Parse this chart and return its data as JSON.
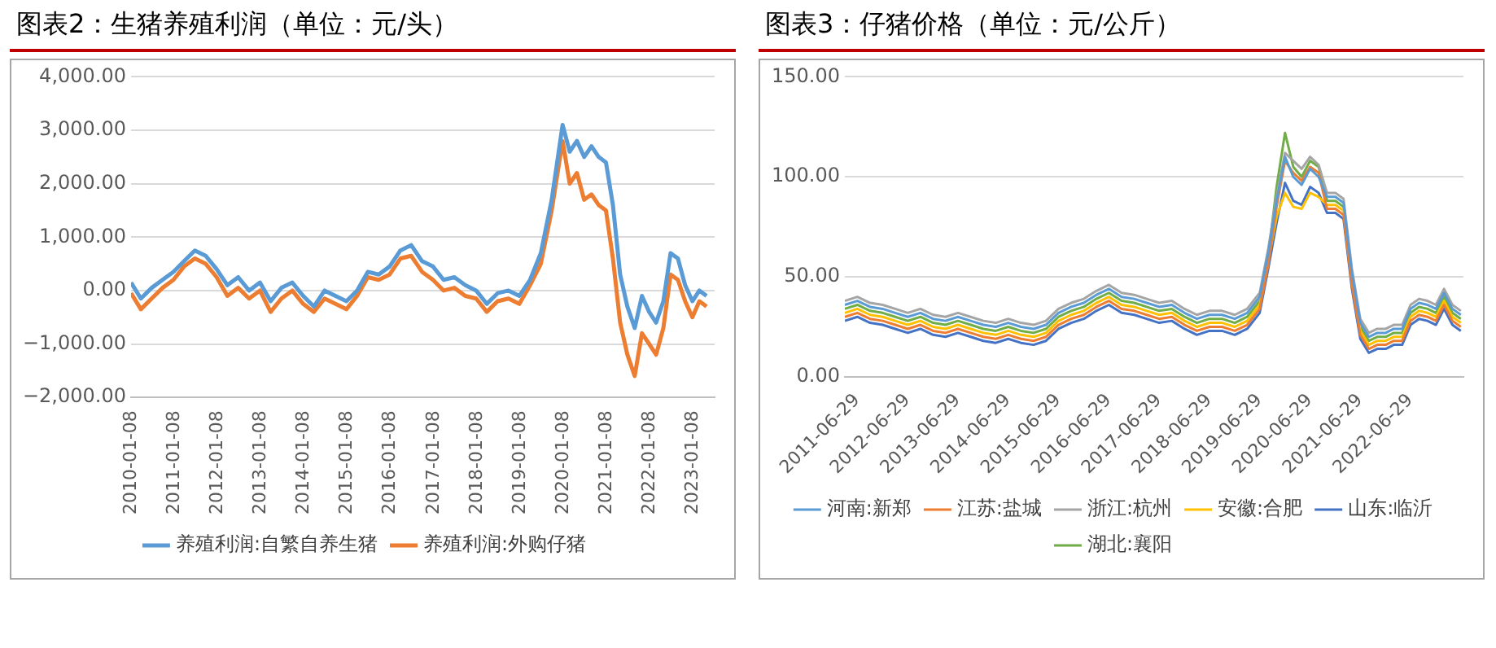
{
  "chart_data": [
    {
      "type": "line",
      "title": "图表2：生猪养殖利润（单位：元/头）",
      "legend": "bottom",
      "grid": "y",
      "x": [
        "2010-01-08",
        "2010-04-01",
        "2010-07-01",
        "2010-10-01",
        "2011-01-01",
        "2011-04-01",
        "2011-07-01",
        "2011-10-01",
        "2012-01-01",
        "2012-04-01",
        "2012-07-01",
        "2012-10-01",
        "2013-01-01",
        "2013-04-01",
        "2013-07-01",
        "2013-10-01",
        "2014-01-01",
        "2014-04-01",
        "2014-07-01",
        "2014-10-01",
        "2015-01-01",
        "2015-04-01",
        "2015-07-01",
        "2015-10-01",
        "2016-01-01",
        "2016-04-01",
        "2016-07-01",
        "2016-10-01",
        "2017-01-01",
        "2017-04-01",
        "2017-07-01",
        "2017-10-01",
        "2018-01-01",
        "2018-04-01",
        "2018-07-01",
        "2018-10-01",
        "2019-01-01",
        "2019-04-01",
        "2019-07-01",
        "2019-10-01",
        "2020-01-01",
        "2020-03-01",
        "2020-05-01",
        "2020-07-01",
        "2020-09-01",
        "2020-11-01",
        "2021-01-01",
        "2021-03-01",
        "2021-05-01",
        "2021-07-01",
        "2021-09-01",
        "2021-11-01",
        "2022-01-01",
        "2022-03-01",
        "2022-05-01",
        "2022-07-01",
        "2022-09-01",
        "2022-11-01",
        "2023-01-01",
        "2023-03-01",
        "2023-05-01"
      ],
      "series": [
        {
          "name": "养殖利润:自繁自养生猪",
          "color": "#5b9bd5",
          "values": [
            150,
            -150,
            50,
            200,
            350,
            550,
            750,
            650,
            400,
            100,
            250,
            0,
            150,
            -200,
            50,
            150,
            -100,
            -300,
            0,
            -100,
            -200,
            0,
            350,
            300,
            450,
            750,
            850,
            550,
            450,
            200,
            250,
            100,
            0,
            -250,
            -50,
            0,
            -100,
            200,
            700,
            1700,
            3100,
            2600,
            2800,
            2500,
            2700,
            2500,
            2400,
            1600,
            300,
            -300,
            -700,
            -100,
            -400,
            -600,
            -200,
            700,
            600,
            100,
            -200,
            0,
            -100
          ]
        },
        {
          "name": "养殖利润:外购仔猪",
          "color": "#ed7d31",
          "values": [
            -50,
            -350,
            -150,
            50,
            200,
            450,
            600,
            500,
            250,
            -100,
            50,
            -150,
            0,
            -400,
            -150,
            0,
            -250,
            -400,
            -150,
            -250,
            -350,
            -100,
            250,
            200,
            300,
            600,
            650,
            350,
            200,
            0,
            50,
            -100,
            -150,
            -400,
            -200,
            -150,
            -250,
            100,
            500,
            1500,
            2800,
            2000,
            2200,
            1700,
            1800,
            1600,
            1500,
            600,
            -600,
            -1200,
            -1600,
            -800,
            -1000,
            -1200,
            -700,
            300,
            200,
            -200,
            -500,
            -200,
            -300
          ]
        }
      ],
      "xlim": [
        "2010-01-08",
        "2023-07-08"
      ],
      "xticks": [
        "2010-01-08",
        "2011-01-08",
        "2012-01-08",
        "2013-01-08",
        "2014-01-08",
        "2015-01-08",
        "2016-01-08",
        "2017-01-08",
        "2018-01-08",
        "2019-01-08",
        "2020-01-08",
        "2021-01-08",
        "2022-01-08",
        "2023-01-08"
      ],
      "ylim": [
        -2000,
        4000
      ],
      "yticks": [
        {
          "value": -2000,
          "label": "−2,000.00"
        },
        {
          "value": -1000,
          "label": "−1,000.00"
        },
        {
          "value": 0,
          "label": "0.00"
        },
        {
          "value": 1000,
          "label": "1,000.00"
        },
        {
          "value": 2000,
          "label": "2,000.00"
        },
        {
          "value": 3000,
          "label": "3,000.00"
        },
        {
          "value": 4000,
          "label": "4,000.00"
        }
      ]
    },
    {
      "type": "line",
      "title": "图表3：仔猪价格（单位：元/公斤）",
      "legend": "bottom",
      "grid": "y",
      "x": [
        "2011-04-01",
        "2011-07-01",
        "2011-10-01",
        "2012-01-01",
        "2012-04-01",
        "2012-07-01",
        "2012-10-01",
        "2013-01-01",
        "2013-04-01",
        "2013-07-01",
        "2013-10-01",
        "2014-01-01",
        "2014-04-01",
        "2014-07-01",
        "2014-10-01",
        "2015-01-01",
        "2015-04-01",
        "2015-07-01",
        "2015-10-01",
        "2016-01-01",
        "2016-04-01",
        "2016-07-01",
        "2016-10-01",
        "2017-01-01",
        "2017-04-01",
        "2017-07-01",
        "2017-10-01",
        "2018-01-01",
        "2018-04-01",
        "2018-07-01",
        "2018-10-01",
        "2019-01-01",
        "2019-04-01",
        "2019-07-01",
        "2019-09-01",
        "2019-11-01",
        "2020-01-01",
        "2020-03-01",
        "2020-05-01",
        "2020-07-01",
        "2020-09-01",
        "2020-11-01",
        "2021-01-01",
        "2021-03-01",
        "2021-05-01",
        "2021-07-01",
        "2021-09-01",
        "2021-11-01",
        "2022-01-01",
        "2022-03-01",
        "2022-05-01",
        "2022-07-01",
        "2022-09-01",
        "2022-11-01",
        "2023-01-01",
        "2023-03-01",
        "2023-05-01",
        "2023-07-01"
      ],
      "series": [
        {
          "name": "河南:新郑",
          "color": "#5b9bd5",
          "values": [
            36,
            38,
            35,
            34,
            32,
            30,
            32,
            29,
            28,
            30,
            28,
            26,
            25,
            27,
            25,
            24,
            26,
            32,
            35,
            37,
            41,
            44,
            40,
            39,
            37,
            35,
            36,
            32,
            29,
            31,
            31,
            29,
            32,
            40,
            62,
            88,
            110,
            100,
            96,
            104,
            100,
            90,
            90,
            87,
            52,
            27,
            20,
            22,
            22,
            24,
            24,
            34,
            37,
            36,
            34,
            42,
            34,
            31
          ]
        },
        {
          "name": "江苏:盐城",
          "color": "#ed7d31",
          "values": [
            30,
            32,
            29,
            28,
            26,
            24,
            26,
            23,
            22,
            24,
            22,
            20,
            19,
            21,
            19,
            18,
            20,
            26,
            29,
            31,
            35,
            38,
            34,
            33,
            31,
            29,
            30,
            26,
            23,
            25,
            25,
            23,
            26,
            34,
            56,
            85,
            108,
            102,
            98,
            105,
            102,
            84,
            84,
            81,
            46,
            21,
            14,
            16,
            16,
            18,
            18,
            28,
            31,
            30,
            28,
            36,
            28,
            25
          ]
        },
        {
          "name": "浙江:杭州",
          "color": "#a5a5a5",
          "values": [
            38,
            40,
            37,
            36,
            34,
            32,
            34,
            31,
            30,
            32,
            30,
            28,
            27,
            29,
            27,
            26,
            28,
            34,
            37,
            39,
            43,
            46,
            42,
            41,
            39,
            37,
            38,
            34,
            31,
            33,
            33,
            31,
            34,
            42,
            64,
            90,
            112,
            108,
            104,
            110,
            106,
            92,
            92,
            89,
            54,
            29,
            22,
            24,
            24,
            26,
            26,
            36,
            39,
            38,
            36,
            44,
            36,
            33
          ]
        },
        {
          "name": "安徽:合肥",
          "color": "#ffc000",
          "values": [
            32,
            34,
            31,
            30,
            28,
            26,
            28,
            25,
            24,
            26,
            24,
            22,
            21,
            23,
            21,
            20,
            22,
            28,
            31,
            33,
            37,
            40,
            36,
            35,
            33,
            31,
            32,
            28,
            25,
            27,
            27,
            25,
            28,
            36,
            58,
            80,
            92,
            85,
            84,
            92,
            90,
            86,
            86,
            83,
            48,
            23,
            16,
            18,
            18,
            20,
            20,
            30,
            33,
            32,
            30,
            38,
            30,
            27
          ]
        },
        {
          "name": "山东:临沂",
          "color": "#4472c4",
          "values": [
            28,
            30,
            27,
            26,
            24,
            22,
            24,
            21,
            20,
            22,
            20,
            18,
            17,
            19,
            17,
            16,
            18,
            24,
            27,
            29,
            33,
            36,
            32,
            31,
            29,
            27,
            28,
            24,
            21,
            23,
            23,
            21,
            24,
            32,
            54,
            77,
            97,
            88,
            86,
            95,
            92,
            82,
            82,
            79,
            44,
            19,
            12,
            14,
            14,
            16,
            16,
            26,
            29,
            28,
            26,
            34,
            26,
            23
          ]
        },
        {
          "name": "湖北:襄阳",
          "color": "#70ad47",
          "values": [
            34,
            36,
            33,
            32,
            30,
            28,
            30,
            27,
            26,
            28,
            26,
            24,
            23,
            25,
            23,
            22,
            24,
            30,
            33,
            35,
            39,
            42,
            38,
            37,
            35,
            33,
            34,
            30,
            27,
            29,
            29,
            27,
            30,
            38,
            60,
            95,
            122,
            105,
            100,
            108,
            105,
            88,
            88,
            85,
            50,
            25,
            18,
            20,
            20,
            22,
            22,
            32,
            35,
            34,
            32,
            40,
            32,
            29
          ]
        }
      ],
      "xlim": [
        "2011-04-01",
        "2023-07-20"
      ],
      "xticks": [
        "2011-06-29",
        "2012-06-29",
        "2013-06-29",
        "2014-06-29",
        "2015-06-29",
        "2016-06-29",
        "2017-06-29",
        "2018-06-29",
        "2019-06-29",
        "2020-06-29",
        "2021-06-29",
        "2022-06-29"
      ],
      "ylim": [
        0,
        150
      ],
      "yticks": [
        {
          "value": 0,
          "label": "0.00"
        },
        {
          "value": 50,
          "label": "50.00"
        },
        {
          "value": 100,
          "label": "100.00"
        },
        {
          "value": 150,
          "label": "150.00"
        }
      ]
    }
  ]
}
